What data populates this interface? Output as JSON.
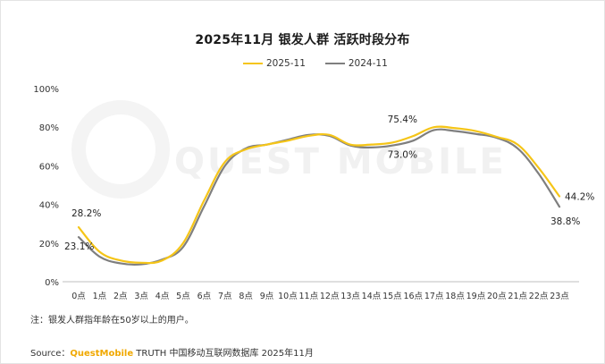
{
  "title": "2025年11月 银发人群 活跃时段分布",
  "legend": [
    {
      "label": "2025-11",
      "color": "#f5c518"
    },
    {
      "label": "2024-11",
      "color": "#7f7f7f"
    }
  ],
  "watermark": "QUEST MOBILE",
  "note": "注：银发人群指年龄在50岁以上的用户。",
  "source": {
    "prefix": "Source：",
    "brand": "QuestMobile",
    "rest": " TRUTH 中国移动互联网数据库 2025年11月"
  },
  "chart_data": {
    "type": "line",
    "categories": [
      "0点",
      "1点",
      "2点",
      "3点",
      "4点",
      "5点",
      "6点",
      "7点",
      "8点",
      "9点",
      "10点",
      "11点",
      "12点",
      "13点",
      "14点",
      "15点",
      "16点",
      "17点",
      "18点",
      "19点",
      "20点",
      "21点",
      "22点",
      "23点"
    ],
    "ylim": [
      0,
      100
    ],
    "yticks": [
      0,
      20,
      40,
      60,
      80,
      100
    ],
    "ytick_labels": [
      "0%",
      "20%",
      "40%",
      "60%",
      "80%",
      "100%"
    ],
    "grid": false,
    "legend_position": "top-center",
    "series": [
      {
        "name": "2025-11",
        "color": "#f5c518",
        "values": [
          28.2,
          15.5,
          11.0,
          9.8,
          11.0,
          20.0,
          42.0,
          62.0,
          68.5,
          71.0,
          73.0,
          75.5,
          76.0,
          71.0,
          71.0,
          72.0,
          75.4,
          80.0,
          79.5,
          78.0,
          75.0,
          71.0,
          59.0,
          44.2
        ]
      },
      {
        "name": "2024-11",
        "color": "#7f7f7f",
        "values": [
          23.1,
          13.0,
          9.5,
          9.0,
          11.5,
          18.0,
          39.0,
          60.0,
          69.0,
          71.0,
          73.5,
          76.0,
          75.5,
          70.5,
          69.5,
          70.5,
          73.0,
          78.5,
          78.0,
          76.5,
          74.5,
          69.0,
          56.0,
          38.8
        ]
      }
    ],
    "annotations": [
      {
        "series": "2025-11",
        "index": 0,
        "text": "28.2%"
      },
      {
        "series": "2024-11",
        "index": 0,
        "text": "23.1%"
      },
      {
        "series": "2025-11",
        "index": 16,
        "text": "75.4%"
      },
      {
        "series": "2024-11",
        "index": 16,
        "text": "73.0%"
      },
      {
        "series": "2025-11",
        "index": 23,
        "text": "44.2%"
      },
      {
        "series": "2024-11",
        "index": 23,
        "text": "38.8%"
      }
    ]
  }
}
